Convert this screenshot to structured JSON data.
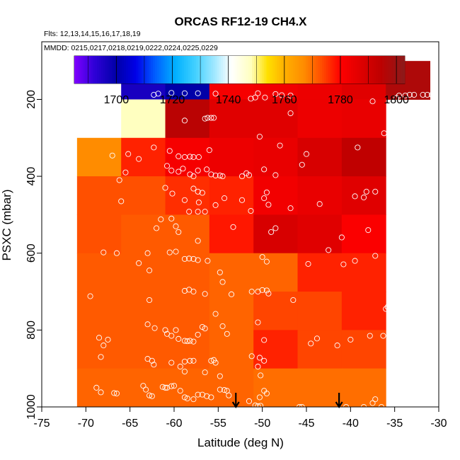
{
  "chart_data": {
    "type": "heatmap",
    "title": "ORCAS RF12-19 CH4.X",
    "flights_label": "Flts: 12,13,14,15,16,17,18,19",
    "mmdd_label": "MMDD: 0215,0217,0218,0219,0222,0224,0225,0229",
    "xlabel": "Latitude (deg N)",
    "ylabel": "PSXC (mbar)",
    "xlim": [
      -75,
      -30
    ],
    "ylim": [
      1000,
      50
    ],
    "x_ticks": [
      -75,
      -70,
      -65,
      -60,
      -55,
      -50,
      -45,
      -40,
      -35,
      -30
    ],
    "y_ticks": [
      200,
      400,
      600,
      800,
      1000
    ],
    "colorbar": {
      "range": [
        1685,
        1803
      ],
      "ticks": [
        1700,
        1720,
        1740,
        1760,
        1780,
        1800
      ],
      "stops": [
        {
          "v": 1685,
          "c": "#7f00ff"
        },
        {
          "v": 1692,
          "c": "#3000d8"
        },
        {
          "v": 1700,
          "c": "#0000a8"
        },
        {
          "v": 1707,
          "c": "#0000e8"
        },
        {
          "v": 1714,
          "c": "#0060ff"
        },
        {
          "v": 1721,
          "c": "#00b0ff"
        },
        {
          "v": 1728,
          "c": "#40d0ff"
        },
        {
          "v": 1735,
          "c": "#a0e8ff"
        },
        {
          "v": 1741,
          "c": "#ffffff"
        },
        {
          "v": 1748,
          "c": "#ffffc0"
        },
        {
          "v": 1754,
          "c": "#ffe000"
        },
        {
          "v": 1760,
          "c": "#ffb000"
        },
        {
          "v": 1767,
          "c": "#ff8c00"
        },
        {
          "v": 1773,
          "c": "#ff5000"
        },
        {
          "v": 1780,
          "c": "#ff0000"
        },
        {
          "v": 1787,
          "c": "#e00000"
        },
        {
          "v": 1794,
          "c": "#c00000"
        },
        {
          "v": 1803,
          "c": "#8b1a1a"
        }
      ]
    },
    "lat_bins": [
      -71,
      -66,
      -61,
      -56,
      -51,
      -46,
      -41,
      -36,
      -31
    ],
    "pressure_bins": [
      100,
      200,
      300,
      400,
      500,
      600,
      700,
      800,
      900,
      1000
    ],
    "grid_values": [
      [
        null,
        1696,
        1700,
        1782,
        1783,
        1784,
        1787,
        1797
      ],
      [
        null,
        1748,
        1795,
        1787,
        1787,
        1784,
        1785,
        null
      ],
      [
        1767,
        1777,
        1782,
        1784,
        1785,
        1789,
        1794,
        null
      ],
      [
        1773,
        1773,
        1776,
        1777,
        1783,
        1785,
        1787,
        null
      ],
      [
        1773,
        1772,
        1772,
        1778,
        1789,
        1787,
        1781,
        null
      ],
      [
        1772,
        1772,
        1772,
        1771,
        1771,
        1777,
        1777,
        null
      ],
      [
        1772,
        1772,
        1772,
        1771,
        1774,
        1774,
        1777,
        null
      ],
      [
        1772,
        1772,
        1772,
        1771,
        1777,
        1774,
        1774,
        null
      ],
      [
        1771,
        1771,
        1771,
        1771,
        1770,
        1770,
        1770,
        null
      ]
    ],
    "observations": [
      [
        -62.3,
        188
      ],
      [
        -61.8,
        185
      ],
      [
        -60.3,
        183
      ],
      [
        -58.8,
        184
      ],
      [
        -57.3,
        184
      ],
      [
        -55.3,
        185
      ],
      [
        -51.3,
        198
      ],
      [
        -50.8,
        195
      ],
      [
        -50.5,
        184
      ],
      [
        -49.7,
        195
      ],
      [
        -48.5,
        186
      ],
      [
        -47.8,
        189
      ],
      [
        -46.8,
        190
      ],
      [
        -37.5,
        205
      ],
      [
        -34.8,
        196
      ],
      [
        -34.5,
        190
      ],
      [
        -33.8,
        190
      ],
      [
        -33.3,
        188
      ],
      [
        -32.8,
        188
      ],
      [
        -31.8,
        188
      ],
      [
        -31.3,
        188
      ],
      [
        -30.8,
        188
      ],
      [
        -56.5,
        250
      ],
      [
        -56.2,
        248
      ],
      [
        -55.8,
        248
      ],
      [
        -55.5,
        248
      ],
      [
        -58.8,
        255
      ],
      [
        -46.8,
        236
      ],
      [
        -50.3,
        297
      ],
      [
        -65.2,
        342
      ],
      [
        -62.3,
        325
      ],
      [
        -60.5,
        334
      ],
      [
        -59.5,
        348
      ],
      [
        -58.8,
        350
      ],
      [
        -58.2,
        349
      ],
      [
        -57.8,
        350
      ],
      [
        -57.2,
        350
      ],
      [
        -56.0,
        332
      ],
      [
        -48.0,
        320
      ],
      [
        -45.0,
        342
      ],
      [
        -39.2,
        325
      ],
      [
        -36.2,
        288
      ],
      [
        -67.0,
        346
      ],
      [
        -65.5,
        390
      ],
      [
        -66.2,
        410
      ],
      [
        -64.0,
        355
      ],
      [
        -60.8,
        373
      ],
      [
        -60.3,
        385
      ],
      [
        -59.5,
        388
      ],
      [
        -59.0,
        380
      ],
      [
        -58.2,
        395
      ],
      [
        -57.8,
        400
      ],
      [
        -57.3,
        385
      ],
      [
        -56.3,
        382
      ],
      [
        -55.8,
        395
      ],
      [
        -55.3,
        398
      ],
      [
        -54.8,
        398
      ],
      [
        -54.5,
        400
      ],
      [
        -52.3,
        400
      ],
      [
        -51.8,
        392
      ],
      [
        -51.5,
        397
      ],
      [
        -49.8,
        382
      ],
      [
        -48.5,
        397
      ],
      [
        -45.5,
        370
      ],
      [
        -35.5,
        400
      ],
      [
        -66.0,
        465
      ],
      [
        -61.0,
        430
      ],
      [
        -60.2,
        445
      ],
      [
        -58.8,
        462
      ],
      [
        -57.8,
        432
      ],
      [
        -57.3,
        440
      ],
      [
        -56.8,
        443
      ],
      [
        -57.2,
        468
      ],
      [
        -58.3,
        492
      ],
      [
        -57.3,
        492
      ],
      [
        -56.5,
        492
      ],
      [
        -55.3,
        475
      ],
      [
        -54.3,
        457
      ],
      [
        -52.3,
        462
      ],
      [
        -51.3,
        490
      ],
      [
        -49.8,
        457
      ],
      [
        -49.5,
        442
      ],
      [
        -49.3,
        474
      ],
      [
        -46.8,
        483
      ],
      [
        -43.5,
        472
      ],
      [
        -39.5,
        452
      ],
      [
        -38.5,
        455
      ],
      [
        -38.2,
        440
      ],
      [
        -37.2,
        440
      ],
      [
        -62.0,
        535
      ],
      [
        -61.5,
        512
      ],
      [
        -60.3,
        510
      ],
      [
        -59.8,
        530
      ],
      [
        -59.5,
        545
      ],
      [
        -60.5,
        598
      ],
      [
        -57.3,
        568
      ],
      [
        -53.3,
        532
      ],
      [
        -48.5,
        535
      ],
      [
        -49.0,
        545
      ],
      [
        -42.5,
        592
      ],
      [
        -41.0,
        559
      ],
      [
        -38.0,
        540
      ],
      [
        -34.5,
        563
      ],
      [
        -64.0,
        626
      ],
      [
        -63.0,
        600
      ],
      [
        -62.8,
        645
      ],
      [
        -59.8,
        596
      ],
      [
        -58.8,
        615
      ],
      [
        -58.3,
        614
      ],
      [
        -57.8,
        615
      ],
      [
        -57.3,
        618
      ],
      [
        -56.2,
        620
      ],
      [
        -54.8,
        650
      ],
      [
        -50.0,
        610
      ],
      [
        -49.5,
        622
      ],
      [
        -44.8,
        628
      ],
      [
        -40.8,
        629
      ],
      [
        -39.5,
        620
      ],
      [
        -37.2,
        607
      ],
      [
        -68.0,
        598
      ],
      [
        -66.5,
        600
      ],
      [
        -69.5,
        712
      ],
      [
        -62.8,
        722
      ],
      [
        -58.8,
        698
      ],
      [
        -58.3,
        695
      ],
      [
        -57.8,
        700
      ],
      [
        -56.5,
        706
      ],
      [
        -54.5,
        675
      ],
      [
        -53.5,
        707
      ],
      [
        -51.2,
        700
      ],
      [
        -50.5,
        700
      ],
      [
        -50.0,
        696
      ],
      [
        -49.5,
        697
      ],
      [
        -49.3,
        705
      ],
      [
        -46.5,
        722
      ],
      [
        -35.8,
        740
      ],
      [
        -36.0,
        745
      ],
      [
        -68.5,
        820
      ],
      [
        -68.0,
        840
      ],
      [
        -67.5,
        825
      ],
      [
        -68.3,
        870
      ],
      [
        -63.0,
        785
      ],
      [
        -62.2,
        795
      ],
      [
        -61.0,
        800
      ],
      [
        -60.8,
        810
      ],
      [
        -60.3,
        815
      ],
      [
        -59.8,
        800
      ],
      [
        -59.5,
        823
      ],
      [
        -58.8,
        828
      ],
      [
        -58.5,
        829
      ],
      [
        -58.2,
        828
      ],
      [
        -57.8,
        830
      ],
      [
        -57.3,
        812
      ],
      [
        -56.8,
        792
      ],
      [
        -56.5,
        796
      ],
      [
        -55.3,
        758
      ],
      [
        -54.5,
        790
      ],
      [
        -54.0,
        810
      ],
      [
        -50.5,
        780
      ],
      [
        -49.8,
        826
      ],
      [
        -44.5,
        835
      ],
      [
        -43.8,
        822
      ],
      [
        -41.5,
        840
      ],
      [
        -40.0,
        825
      ],
      [
        -37.8,
        815
      ],
      [
        -36.3,
        815
      ],
      [
        -68.8,
        950
      ],
      [
        -68.3,
        962
      ],
      [
        -66.5,
        965
      ],
      [
        -66.8,
        964
      ],
      [
        -63.5,
        945
      ],
      [
        -63.2,
        955
      ],
      [
        -62.8,
        970
      ],
      [
        -62.5,
        972
      ],
      [
        -61.3,
        948
      ],
      [
        -61.0,
        950
      ],
      [
        -60.8,
        950
      ],
      [
        -60.3,
        946
      ],
      [
        -60.0,
        945
      ],
      [
        -59.3,
        958
      ],
      [
        -58.8,
        975
      ],
      [
        -58.5,
        978
      ],
      [
        -57.8,
        980
      ],
      [
        -57.3,
        968
      ],
      [
        -56.8,
        968
      ],
      [
        -56.3,
        972
      ],
      [
        -55.8,
        975
      ],
      [
        -54.8,
        955
      ],
      [
        -54.3,
        956
      ],
      [
        -54.0,
        958
      ],
      [
        -53.8,
        970
      ],
      [
        -51.5,
        985
      ],
      [
        -50.8,
        996
      ],
      [
        -50.5,
        998
      ],
      [
        -50.2,
        997
      ],
      [
        -49.8,
        958
      ],
      [
        -49.5,
        965
      ],
      [
        -45.8,
        1000
      ],
      [
        -45.5,
        1000
      ],
      [
        -40.5,
        1000
      ],
      [
        -38.5,
        1000
      ],
      [
        -37.5,
        990
      ],
      [
        -37.2,
        980
      ],
      [
        -36.5,
        1000
      ],
      [
        -62.5,
        880
      ],
      [
        -63.0,
        875
      ],
      [
        -62.3,
        890
      ],
      [
        -60.3,
        885
      ],
      [
        -59.3,
        895
      ],
      [
        -58.8,
        882
      ],
      [
        -58.2,
        880
      ],
      [
        -57.8,
        880
      ],
      [
        -55.3,
        885
      ],
      [
        -55.5,
        878
      ],
      [
        -55.8,
        880
      ],
      [
        -50.3,
        872
      ],
      [
        -50.2,
        918
      ],
      [
        -51.2,
        868
      ],
      [
        -58.8,
        908
      ],
      [
        -56.5,
        910
      ],
      [
        -54.8,
        920
      ],
      [
        -50.5,
        895
      ],
      [
        -49.8,
        880
      ],
      [
        -50.3,
        975
      ]
    ],
    "arrows": [
      -53,
      -41.3
    ]
  }
}
